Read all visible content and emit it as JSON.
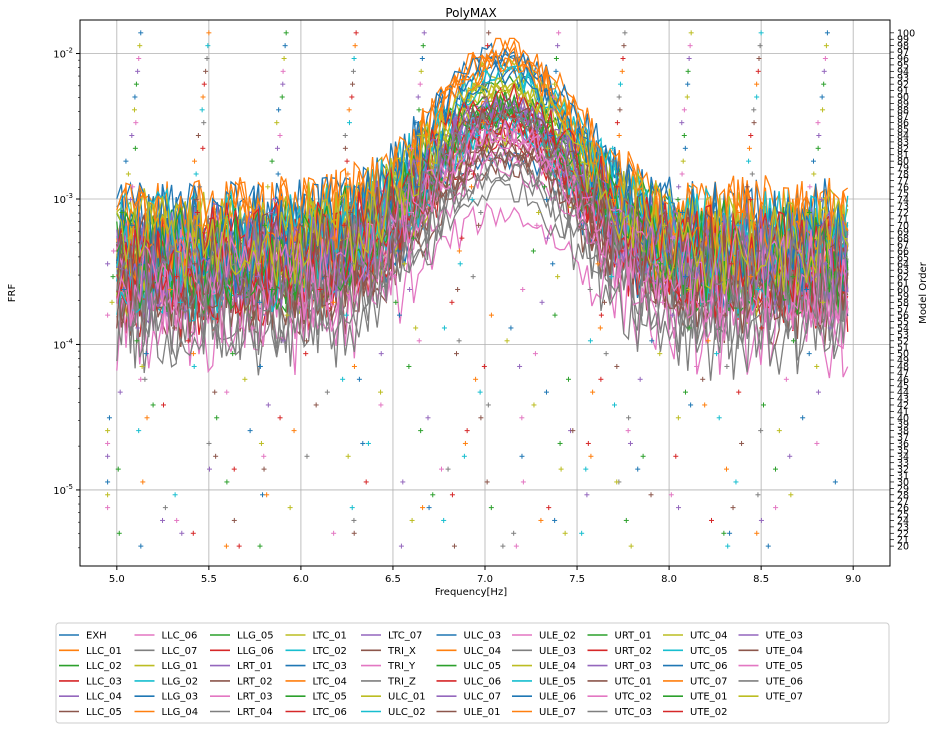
{
  "chart_data": {
    "type": "line",
    "title": "PolyMAX",
    "xlabel": "Frequency[Hz]",
    "ylabel": "FRF",
    "y2label": "Model Order",
    "xlim": [
      4.8,
      9.2
    ],
    "ylim": [
      3e-06,
      0.017
    ],
    "yscale": "log",
    "y2lim": [
      16.9,
      102.0
    ],
    "grid": true,
    "legend_position": "bottom, below plot, 11 columns",
    "x_ticks": [
      "5.0",
      "5.5",
      "6.0",
      "6.5",
      "7.0",
      "7.5",
      "8.0",
      "8.5",
      "9.0"
    ],
    "y_ticks": [
      {
        "value": 1e-05,
        "label": "10^-5"
      },
      {
        "value": 0.0001,
        "label": "10^-4"
      },
      {
        "value": 0.001,
        "label": "10^-3"
      },
      {
        "value": 0.01,
        "label": "10^-2"
      }
    ],
    "y2_ticks": [
      20,
      21,
      22,
      23,
      24,
      25,
      26,
      27,
      28,
      29,
      30,
      31,
      32,
      33,
      34,
      35,
      36,
      37,
      38,
      39,
      40,
      41,
      42,
      43,
      44,
      45,
      46,
      47,
      48,
      49,
      50,
      51,
      52,
      53,
      54,
      55,
      56,
      57,
      58,
      59,
      60,
      61,
      62,
      63,
      64,
      65,
      66,
      67,
      68,
      69,
      70,
      71,
      72,
      73,
      74,
      75,
      76,
      77,
      78,
      79,
      80,
      81,
      82,
      83,
      84,
      85,
      86,
      87,
      88,
      89,
      90,
      91,
      92,
      93,
      94,
      95,
      96,
      97,
      98,
      99,
      100
    ],
    "x_range": [
      5.0,
      8.97
    ],
    "peak_frequency": 7.1,
    "stable_pole_columns": [
      5.13,
      5.5,
      5.92,
      6.3,
      6.67,
      7.02,
      7.4,
      7.76,
      8.12,
      8.5,
      8.86
    ],
    "colors": [
      "#1f77b4",
      "#ff7f0e",
      "#2ca02c",
      "#d62728",
      "#9467bd",
      "#8c564b",
      "#e377c2",
      "#7f7f7f",
      "#bcbd22",
      "#17becf"
    ],
    "series": [
      {
        "name": "EXH",
        "peak": 0.002,
        "base": 0.0003
      },
      {
        "name": "LLC_01",
        "peak": 0.0045,
        "base": 0.00038
      },
      {
        "name": "LLC_02",
        "peak": 0.003,
        "base": 0.00032
      },
      {
        "name": "LLC_03",
        "peak": 0.0025,
        "base": 0.00025
      },
      {
        "name": "LLC_04",
        "peak": 0.0047,
        "base": 0.0004
      },
      {
        "name": "LLC_05",
        "peak": 0.0018,
        "base": 0.0002
      },
      {
        "name": "LLC_06",
        "peak": 0.0022,
        "base": 0.00026
      },
      {
        "name": "LLC_07",
        "peak": 0.0019,
        "base": 0.00022
      },
      {
        "name": "LLG_01",
        "peak": 0.0028,
        "base": 0.0003
      },
      {
        "name": "LLG_02",
        "peak": 0.0035,
        "base": 0.00033
      },
      {
        "name": "LLG_03",
        "peak": 0.01,
        "base": 0.0006
      },
      {
        "name": "LLG_04",
        "peak": 0.011,
        "base": 0.00065
      },
      {
        "name": "LLG_05",
        "peak": 0.004,
        "base": 0.00035
      },
      {
        "name": "LLG_06",
        "peak": 0.0032,
        "base": 0.0003
      },
      {
        "name": "LRT_01",
        "peak": 0.0031,
        "base": 0.00031
      },
      {
        "name": "LRT_02",
        "peak": 0.0021,
        "base": 0.00023
      },
      {
        "name": "LRT_03",
        "peak": 0.0008,
        "base": 0.00013
      },
      {
        "name": "LRT_04",
        "peak": 0.0012,
        "base": 0.00012
      },
      {
        "name": "LTC_01",
        "peak": 0.0055,
        "base": 0.00045
      },
      {
        "name": "LTC_02",
        "peak": 0.004,
        "base": 0.00036
      },
      {
        "name": "LTC_03",
        "peak": 0.0078,
        "base": 0.00055
      },
      {
        "name": "LTC_04",
        "peak": 0.0095,
        "base": 0.0006
      },
      {
        "name": "LTC_05",
        "peak": 0.006,
        "base": 0.00047
      },
      {
        "name": "LTC_06",
        "peak": 0.0036,
        "base": 0.00034
      },
      {
        "name": "LTC_07",
        "peak": 0.0046,
        "base": 0.00041
      },
      {
        "name": "TRI_X",
        "peak": 0.0024,
        "base": 0.00027
      },
      {
        "name": "TRI_Y",
        "peak": 0.0017,
        "base": 0.00021
      },
      {
        "name": "TRI_Z",
        "peak": 0.0016,
        "base": 0.00018
      },
      {
        "name": "ULC_01",
        "peak": 0.008,
        "base": 0.00056
      },
      {
        "name": "ULC_02",
        "peak": 0.0076,
        "base": 0.00054
      },
      {
        "name": "ULC_03",
        "peak": 0.0098,
        "base": 0.00062
      },
      {
        "name": "ULC_04",
        "peak": 0.0105,
        "base": 0.00063
      },
      {
        "name": "ULC_05",
        "peak": 0.0038,
        "base": 0.00035
      },
      {
        "name": "ULC_06",
        "peak": 0.0034,
        "base": 0.00033
      },
      {
        "name": "ULC_07",
        "peak": 0.005,
        "base": 0.00042
      },
      {
        "name": "ULE_01",
        "peak": 0.0026,
        "base": 0.00029
      },
      {
        "name": "ULE_02",
        "peak": 0.0029,
        "base": 0.0003
      },
      {
        "name": "ULE_03",
        "peak": 0.0015,
        "base": 0.00017
      },
      {
        "name": "ULE_04",
        "peak": 0.0058,
        "base": 0.00046
      },
      {
        "name": "ULE_05",
        "peak": 0.0033,
        "base": 0.00032
      },
      {
        "name": "ULE_06",
        "peak": 0.009,
        "base": 0.00058
      },
      {
        "name": "ULE_07",
        "peak": 0.0088,
        "base": 0.00059
      },
      {
        "name": "URT_01",
        "peak": 0.0042,
        "base": 0.00037
      },
      {
        "name": "URT_02",
        "peak": 0.0037,
        "base": 0.00034
      },
      {
        "name": "URT_03",
        "peak": 0.0044,
        "base": 0.00039
      },
      {
        "name": "UTC_01",
        "peak": 0.0023,
        "base": 0.00026
      },
      {
        "name": "UTC_02",
        "peak": 0.0027,
        "base": 0.00028
      },
      {
        "name": "UTC_03",
        "peak": 0.0039,
        "base": 0.00036
      },
      {
        "name": "UTC_04",
        "peak": 0.0062,
        "base": 0.00048
      },
      {
        "name": "UTC_05",
        "peak": 0.0072,
        "base": 0.00052
      },
      {
        "name": "UTC_06",
        "peak": 0.007,
        "base": 0.0005
      },
      {
        "name": "UTC_07",
        "peak": 0.0092,
        "base": 0.0006
      },
      {
        "name": "UTE_01",
        "peak": 0.0048,
        "base": 0.0004
      },
      {
        "name": "UTE_02",
        "peak": 0.0052,
        "base": 0.00043
      },
      {
        "name": "UTE_03",
        "peak": 0.0043,
        "base": 0.00038
      },
      {
        "name": "UTE_04",
        "peak": 0.0041,
        "base": 0.00037
      },
      {
        "name": "UTE_05",
        "peak": 0.003,
        "base": 0.0003
      },
      {
        "name": "UTE_06",
        "peak": 0.0035,
        "base": 0.00033
      },
      {
        "name": "UTE_07",
        "peak": 0.0065,
        "base": 0.00049
      }
    ]
  }
}
